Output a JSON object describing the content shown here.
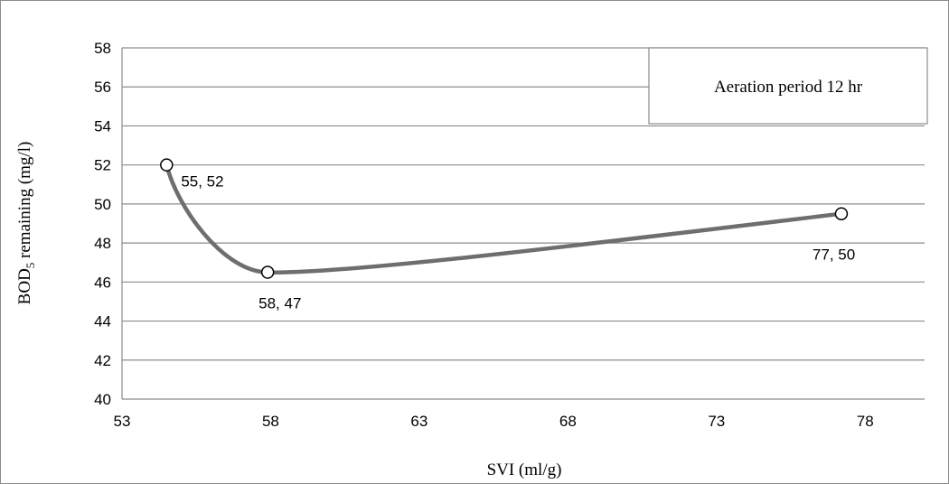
{
  "chart_data": {
    "type": "scatter",
    "subtitle": "Aeration period 12 hr",
    "xlabel": "SVI (ml/g)",
    "ylabel_prefix": "BOD",
    "ylabel_sub": "5",
    "ylabel_suffix": " remaining (mg/l)",
    "xlim": [
      53,
      80
    ],
    "ylim": [
      40,
      58
    ],
    "xticks": [
      53,
      58,
      63,
      68,
      73,
      78
    ],
    "yticks": [
      40,
      42,
      44,
      46,
      48,
      50,
      52,
      54,
      56,
      58
    ],
    "grid": "horizontal",
    "smooth_line": true,
    "points": [
      {
        "x": 54.5,
        "y": 52,
        "label": "55, 52"
      },
      {
        "x": 57.9,
        "y": 46.5,
        "label": "58, 47"
      },
      {
        "x": 77.2,
        "y": 49.5,
        "label": "77, 50"
      }
    ],
    "colors": {
      "line": "#6e6e6e",
      "marker_fill": "#ffffff",
      "marker_stroke": "#000000",
      "grid": "#8c8c8c"
    }
  }
}
